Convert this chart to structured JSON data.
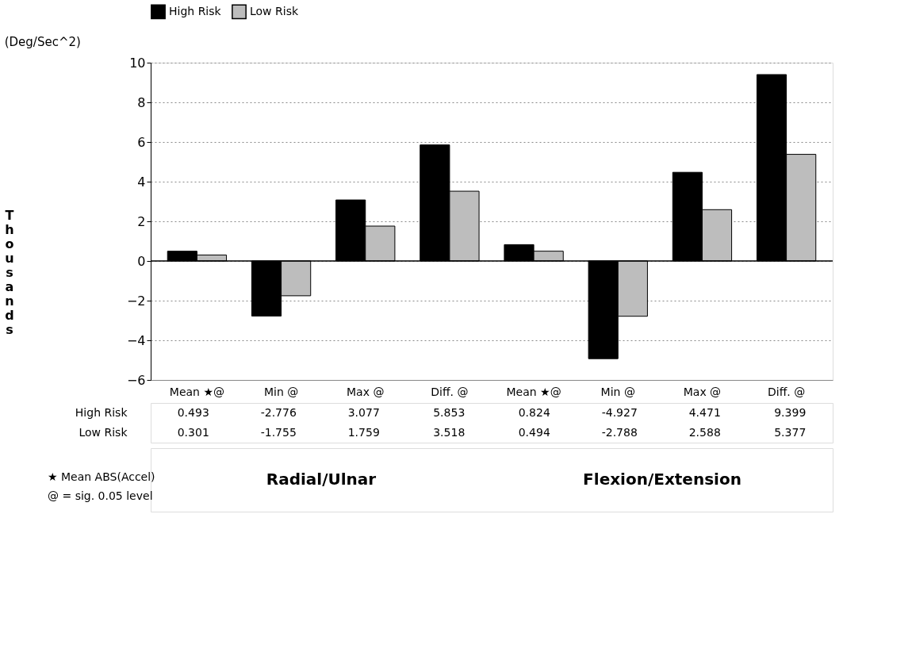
{
  "chart_data": {
    "type": "bar",
    "categories": [
      "Mean ★@",
      "Min @",
      "Max @",
      "Diff. @",
      "Mean ★@",
      "Min @",
      "Max @",
      "Diff. @"
    ],
    "series": [
      {
        "name": "High Risk",
        "color": "#000000",
        "values": [
          0.493,
          -2.776,
          3.077,
          5.853,
          0.824,
          -4.927,
          4.471,
          9.399
        ]
      },
      {
        "name": "Low Risk",
        "color": "#bdbdbd",
        "values": [
          0.301,
          -1.755,
          1.759,
          3.518,
          0.494,
          -2.788,
          2.588,
          5.377
        ]
      }
    ],
    "ylabel": "Thousands",
    "ylim": [
      -6,
      10
    ],
    "yticks": [
      -6,
      -4,
      -2,
      0,
      2,
      4,
      6,
      8,
      10
    ],
    "grid": "y",
    "legend": "top",
    "data_labels": true,
    "ref_lines": [
      {
        "axis": "y",
        "value": 0,
        "color": "#000000"
      }
    ],
    "annotations": [
      "(Deg/Sec^2)",
      "Radial/Ulnar",
      "Flexion/Extension",
      "★ Mean ABS(Accel)",
      "@ = sig. 0.05 level"
    ]
  }
}
